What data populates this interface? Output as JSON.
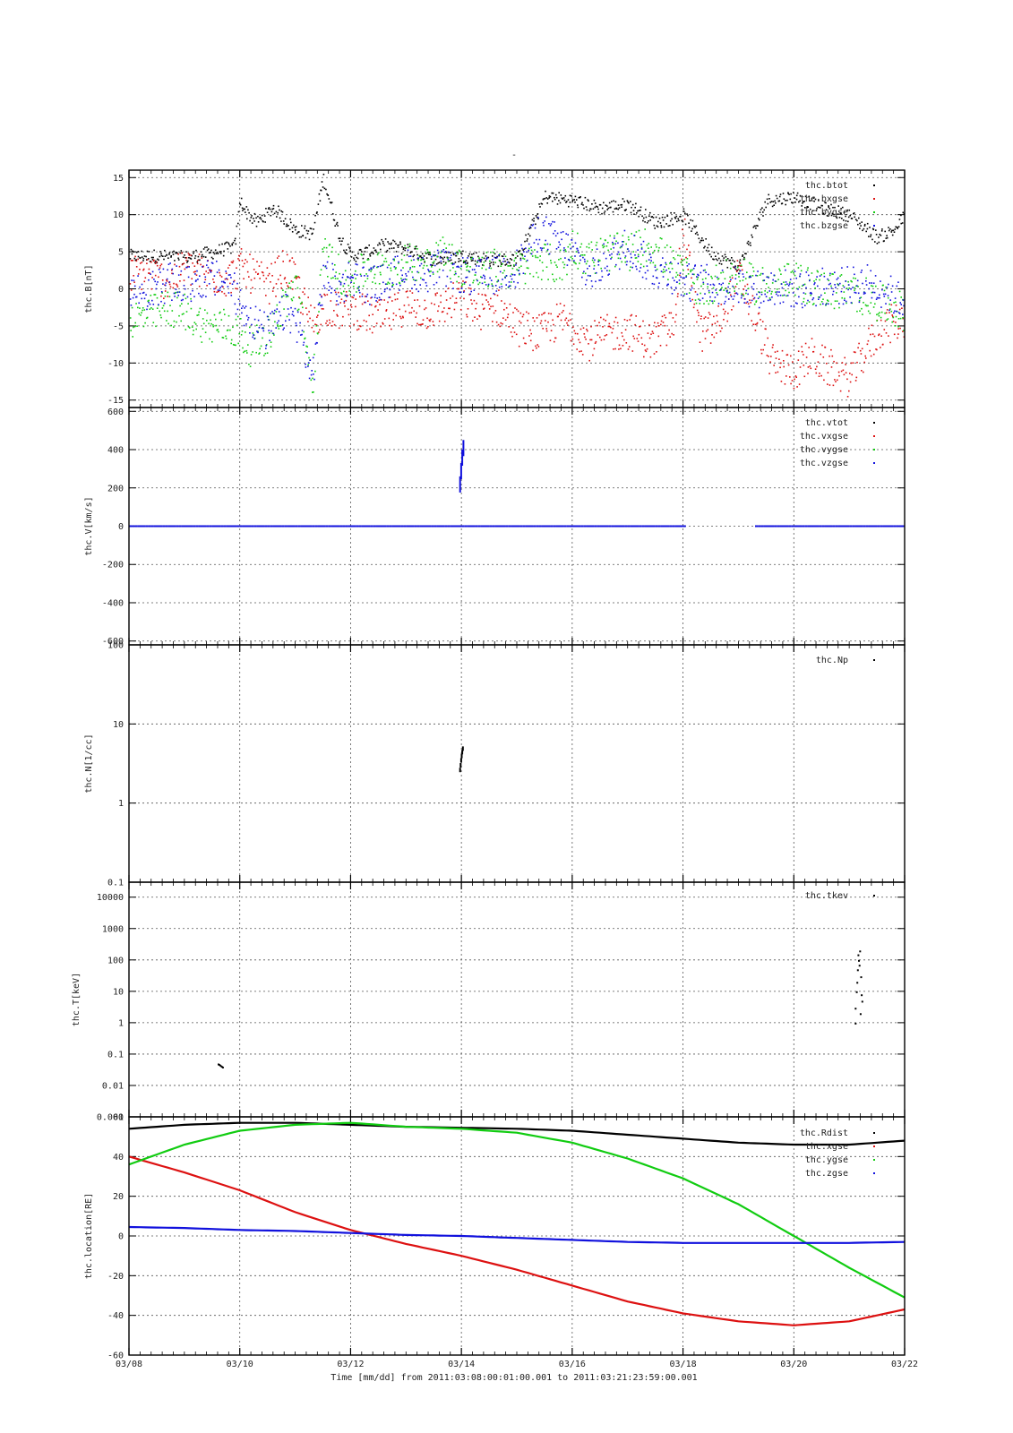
{
  "figure": {
    "title": "-",
    "xtitle": "Time [mm/dd]  from 2011:03:08:00:01:00.001  to  2011:03:21:23:59:00.001",
    "xticks": [
      "03/08",
      "03/10",
      "03/12",
      "03/14",
      "03/16",
      "03/18",
      "03/20",
      "03/22"
    ]
  },
  "chart_data": [
    {
      "type": "scatter",
      "ylabel": "thc.B[nT]",
      "xlim": [
        0,
        14
      ],
      "x_unit": "days since 03/08",
      "ylim": [
        -16,
        16
      ],
      "yscale": "linear",
      "yticks": [
        "15",
        "10",
        "5",
        "0",
        "-5",
        "-10",
        "-15"
      ],
      "ytick_values": [
        15,
        10,
        5,
        0,
        -5,
        -10,
        -15
      ],
      "grid": true,
      "legend_position": "top-right",
      "series": [
        {
          "name": "thc.btot",
          "color": "#000000",
          "x": [
            0,
            0.5,
            1,
            1.5,
            1.9,
            2.0,
            2.1,
            2.3,
            2.6,
            3.0,
            3.3,
            3.5,
            3.8,
            4.0,
            4.3,
            4.6,
            5.0,
            5.5,
            6.0,
            6.5,
            7.0,
            7.5,
            8.0,
            8.5,
            9.0,
            9.5,
            10.0,
            10.5,
            11.0,
            11.5,
            12.0,
            12.5,
            13.0,
            13.5,
            13.8,
            14.0
          ],
          "y": [
            4.5,
            4.5,
            4.3,
            5.0,
            5.8,
            12.0,
            10.5,
            9.0,
            11.0,
            8.0,
            7.5,
            15.0,
            7.0,
            4.5,
            5.0,
            6.0,
            5.5,
            4.0,
            4.5,
            4.0,
            4.0,
            12.5,
            12.0,
            11.0,
            11.5,
            9.0,
            10.0,
            5.0,
            3.0,
            12.0,
            12.5,
            11.0,
            10.0,
            7.0,
            8.0,
            10.0
          ]
        },
        {
          "name": "thc.bxgse",
          "color": "#dd1111",
          "x": [
            0,
            0.3,
            0.7,
            1,
            1.4,
            1.8,
            2.0,
            2.2,
            2.5,
            2.8,
            3.0,
            3.3,
            3.5,
            3.8,
            4.0,
            4.3,
            4.6,
            5.0,
            5.3,
            5.6,
            6.0,
            6.3,
            6.6,
            7.0,
            7.4,
            7.8,
            8.0,
            8.3,
            8.6,
            9.0,
            9.4,
            9.8,
            10.0,
            10.3,
            10.6,
            11.0,
            11.3,
            11.6,
            12.0,
            12.3,
            12.6,
            13.0,
            13.3,
            13.6,
            14.0
          ],
          "y": [
            2.0,
            2.5,
            1.0,
            3.0,
            2.0,
            1.5,
            3.0,
            2.0,
            0.5,
            3.0,
            1.0,
            -5.0,
            -2.0,
            -3.0,
            -2.5,
            -3.5,
            -4.0,
            -2.0,
            -3.0,
            -2.5,
            -1.0,
            -3.0,
            -2.0,
            -5.0,
            -6.0,
            -4.0,
            -5.0,
            -7.0,
            -6.0,
            -5.5,
            -7.0,
            -5.0,
            8.0,
            -6.0,
            -5.0,
            2.0,
            -4.0,
            -10.0,
            -11.0,
            -9.0,
            -10.5,
            -12.0,
            -8.0,
            -5.0,
            -4.0
          ]
        },
        {
          "name": "thc.bygse",
          "color": "#11cc11",
          "x": [
            0,
            0.3,
            0.7,
            1,
            1.4,
            1.8,
            2.0,
            2.2,
            2.5,
            2.8,
            3.0,
            3.3,
            3.5,
            3.8,
            4.0,
            4.3,
            4.6,
            5.0,
            5.3,
            5.6,
            6.0,
            6.3,
            6.6,
            7.0,
            7.4,
            7.8,
            8.0,
            8.3,
            8.6,
            9.0,
            9.4,
            9.8,
            10.0,
            10.3,
            10.6,
            11.0,
            11.3,
            11.6,
            12.0,
            12.3,
            12.6,
            13.0,
            13.3,
            13.6,
            14.0
          ],
          "y": [
            -4.0,
            -3.5,
            -2.5,
            -3.0,
            -5.0,
            -5.0,
            -6.0,
            -8.0,
            -6.0,
            -2.0,
            1.0,
            -13.0,
            5.0,
            2.0,
            1.0,
            3.0,
            2.5,
            3.5,
            4.0,
            5.0,
            3.0,
            2.0,
            3.0,
            2.5,
            4.0,
            3.0,
            6.0,
            4.0,
            5.0,
            5.0,
            6.0,
            3.0,
            2.0,
            0.0,
            1.0,
            2.0,
            0.5,
            1.0,
            1.0,
            0.5,
            0.0,
            -0.5,
            -1.0,
            -2.0,
            -3.0
          ]
        },
        {
          "name": "thc.bzgse",
          "color": "#1111dd",
          "x": [
            0,
            0.3,
            0.7,
            1,
            1.4,
            1.8,
            2.0,
            2.2,
            2.5,
            2.8,
            3.0,
            3.3,
            3.5,
            3.8,
            4.0,
            4.3,
            4.6,
            5.0,
            5.3,
            5.6,
            6.0,
            6.3,
            6.6,
            7.0,
            7.4,
            7.8,
            8.0,
            8.3,
            8.6,
            9.0,
            9.4,
            9.8,
            10.0,
            10.3,
            10.6,
            11.0,
            11.3,
            11.6,
            12.0,
            12.3,
            12.6,
            13.0,
            13.3,
            13.6,
            14.0
          ],
          "y": [
            0.0,
            -0.5,
            1.0,
            0.5,
            1.5,
            1.0,
            -2.0,
            -4.0,
            -6.0,
            -3.0,
            -4.0,
            -12.0,
            2.0,
            0.0,
            2.0,
            0.5,
            1.0,
            3.0,
            2.0,
            3.0,
            2.0,
            1.5,
            2.0,
            3.0,
            8.0,
            6.0,
            5.0,
            2.0,
            4.0,
            6.0,
            3.0,
            2.0,
            1.0,
            1.0,
            0.5,
            0.5,
            0.0,
            0.5,
            0.0,
            0.0,
            0.5,
            0.5,
            1.0,
            0.0,
            -2.0
          ]
        }
      ]
    },
    {
      "type": "scatter",
      "ylabel": "thc.V[km/s]",
      "xlim": [
        0,
        14
      ],
      "x_unit": "days since 03/08",
      "ylim": [
        -620,
        620
      ],
      "yscale": "linear",
      "yticks": [
        "600",
        "400",
        "200",
        "0",
        "-200",
        "-400",
        "-600"
      ],
      "ytick_values": [
        600,
        400,
        200,
        0,
        -200,
        -400,
        -600
      ],
      "grid": true,
      "legend_position": "top-right",
      "series": [
        {
          "name": "thc.vtot",
          "color": "#000000",
          "x": [],
          "y": []
        },
        {
          "name": "thc.vxgse",
          "color": "#dd1111",
          "x": [],
          "y": []
        },
        {
          "name": "thc.vygse",
          "color": "#11cc11",
          "x": [],
          "y": []
        },
        {
          "name": "thc.vzgse",
          "color": "#1111dd",
          "x": [
            0,
            1,
            2,
            3,
            4,
            5,
            5.96,
            5.98,
            6.0,
            6.02,
            7,
            8,
            9,
            10,
            10.5,
            11.3,
            12,
            13,
            14
          ],
          "y": [
            0,
            0,
            0,
            0,
            0,
            0,
            260,
            330,
            400,
            450,
            0,
            0,
            0,
            0,
            0,
            0,
            0,
            0,
            0
          ]
        }
      ]
    },
    {
      "type": "scatter",
      "ylabel": "thc.N[1/cc]",
      "xlim": [
        0,
        14
      ],
      "x_unit": "days since 03/08",
      "ylim": [
        0.1,
        100
      ],
      "yscale": "log",
      "yticks": [
        "100",
        "10",
        "1",
        "0.1"
      ],
      "ytick_values": [
        100,
        10,
        1,
        0.1
      ],
      "grid": true,
      "legend_position": "top-right",
      "series": [
        {
          "name": "thc.Np",
          "color": "#000000",
          "x": [
            5.96,
            5.97,
            5.98,
            5.99,
            6.0,
            6.01
          ],
          "y": [
            2.8,
            3.2,
            3.7,
            4.2,
            4.7,
            5.2
          ]
        }
      ]
    },
    {
      "type": "scatter",
      "ylabel": "thc.T[keV]",
      "xlim": [
        0,
        14
      ],
      "x_unit": "days since 03/08",
      "ylim": [
        0.001,
        30000
      ],
      "yscale": "log",
      "yticks": [
        "10000",
        "1000",
        "100",
        "10",
        "1",
        "0.1",
        "0.01",
        "0.001"
      ],
      "ytick_values": [
        10000,
        1000,
        100,
        10,
        1,
        0.1,
        0.01,
        0.001
      ],
      "grid": true,
      "legend_position": "top-right",
      "series": [
        {
          "name": "thc.tkev",
          "color": "#000000",
          "x": [
            1.6,
            1.62,
            1.64,
            1.66,
            1.68,
            13.1,
            13.12,
            13.14,
            13.16,
            13.18,
            13.2,
            13.22,
            13.1,
            13.13,
            13.17,
            13.21,
            13.15,
            13.19
          ],
          "y": [
            0.05,
            0.048,
            0.045,
            0.042,
            0.04,
            3,
            10,
            50,
            100,
            200,
            30,
            5,
            1,
            20,
            70,
            8,
            150,
            2
          ]
        }
      ]
    },
    {
      "type": "line",
      "ylabel": "thc.location[RE]",
      "xlim": [
        0,
        14
      ],
      "x_unit": "days since 03/08",
      "ylim": [
        -60,
        60
      ],
      "yscale": "linear",
      "yticks": [
        "60",
        "40",
        "20",
        "0",
        "-20",
        "-40",
        "-60"
      ],
      "ytick_values": [
        60,
        40,
        20,
        0,
        -20,
        -40,
        -60
      ],
      "grid": true,
      "legend_position": "top-right",
      "series": [
        {
          "name": "thc.Rdist",
          "color": "#000000",
          "x": [
            0,
            1,
            2,
            3,
            4,
            5,
            6,
            7,
            8,
            9,
            10,
            11,
            12,
            13,
            14
          ],
          "y": [
            54,
            56,
            57,
            57,
            56,
            55,
            54.5,
            54,
            53,
            51,
            49,
            47,
            46,
            46,
            48
          ]
        },
        {
          "name": "thc.xgse",
          "color": "#dd1111",
          "x": [
            0,
            1,
            2,
            3,
            4,
            5,
            6,
            7,
            8,
            9,
            10,
            11,
            12,
            13,
            14
          ],
          "y": [
            40,
            32,
            23,
            12,
            3,
            -4,
            -10,
            -17,
            -25,
            -33,
            -39,
            -43,
            -45,
            -43,
            -37
          ]
        },
        {
          "name": "thc.ygse",
          "color": "#11cc11",
          "x": [
            0,
            1,
            2,
            3,
            4,
            5,
            6,
            7,
            8,
            9,
            10,
            11,
            12,
            13,
            14
          ],
          "y": [
            36,
            46,
            53,
            56,
            57,
            55,
            54,
            52,
            47,
            39,
            29,
            16,
            0,
            -16,
            -31
          ]
        },
        {
          "name": "thc.zgse",
          "color": "#1111dd",
          "x": [
            0,
            1,
            2,
            3,
            4,
            5,
            6,
            7,
            8,
            9,
            10,
            11,
            12,
            13,
            14
          ],
          "y": [
            4.5,
            4,
            3,
            2.5,
            1.5,
            0.5,
            0,
            -1,
            -2,
            -3,
            -3.5,
            -3.5,
            -3.5,
            -3.5,
            -3
          ]
        }
      ]
    }
  ]
}
